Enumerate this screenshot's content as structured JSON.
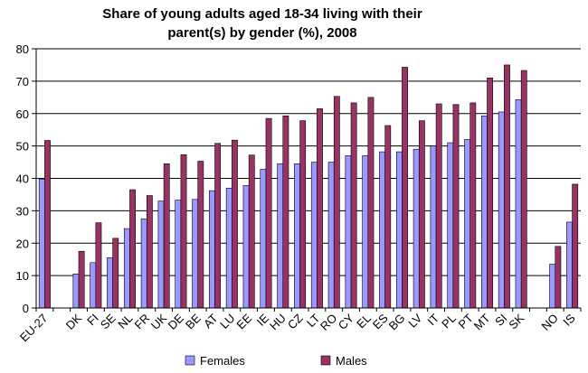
{
  "chart_data": {
    "type": "bar",
    "title_lines": [
      "Share of young adults aged 18-34 living with their",
      "parent(s) by gender (%), 2008"
    ],
    "xlabel": "",
    "ylabel": "",
    "ylim": [
      0,
      80
    ],
    "yticks": [
      0,
      10,
      20,
      30,
      40,
      50,
      60,
      70,
      80
    ],
    "grid": true,
    "legend_position": "bottom",
    "categories": [
      "EU-27",
      "",
      "DK",
      "FI",
      "SE",
      "NL",
      "FR",
      "UK",
      "DE",
      "BE",
      "AT",
      "LU",
      "EE",
      "IE",
      "HU",
      "CZ",
      "LT",
      "RO",
      "CY",
      "EL",
      "ES",
      "BG",
      "LV",
      "IT",
      "PL",
      "PT",
      "MT",
      "SI",
      "SK",
      "",
      "NO",
      "IS"
    ],
    "series": [
      {
        "name": "Females",
        "color": "#9999FF",
        "values": [
          39.8,
          null,
          10.5,
          14.0,
          15.5,
          24.5,
          27.5,
          33.0,
          33.3,
          33.5,
          36.2,
          37.0,
          37.8,
          42.8,
          44.5,
          44.5,
          45.0,
          45.0,
          47.0,
          47.0,
          48.2,
          48.2,
          49.0,
          50.0,
          51.0,
          52.0,
          59.3,
          60.5,
          64.3,
          null,
          13.5,
          26.5
        ]
      },
      {
        "name": "Males",
        "color": "#993366",
        "values": [
          51.7,
          null,
          17.5,
          26.3,
          21.5,
          36.5,
          34.7,
          44.5,
          47.3,
          45.3,
          50.8,
          51.8,
          47.2,
          58.5,
          59.3,
          57.8,
          61.5,
          65.3,
          63.3,
          65.0,
          56.3,
          74.3,
          57.8,
          63.0,
          62.8,
          63.3,
          71.0,
          75.0,
          73.3,
          null,
          19.0,
          38.2
        ]
      }
    ]
  }
}
